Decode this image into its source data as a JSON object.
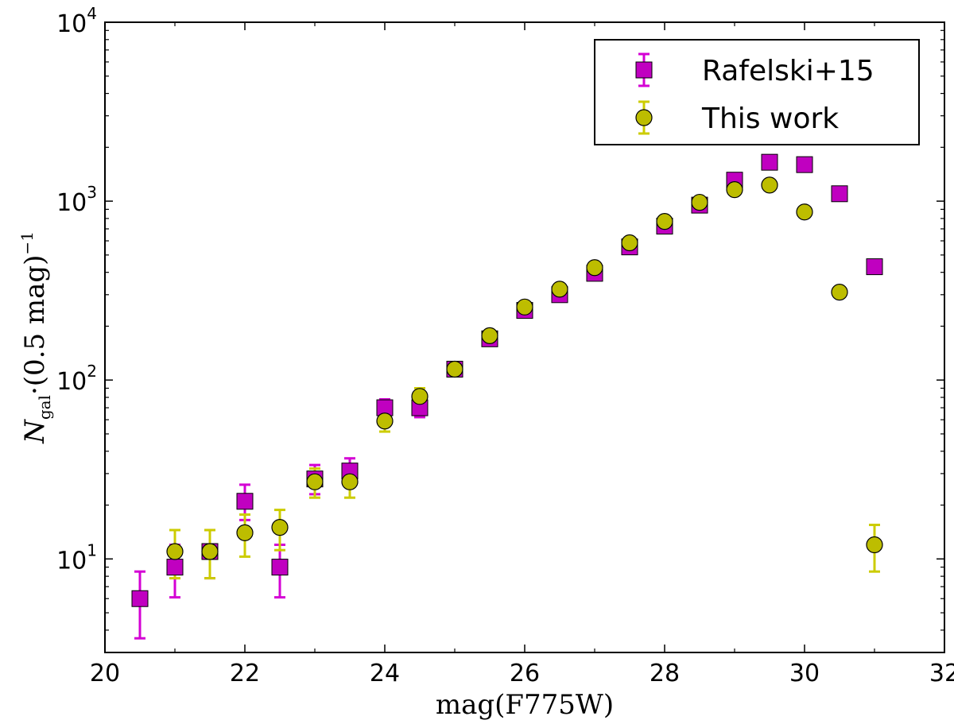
{
  "chart_data": {
    "type": "scatter",
    "xlabel": "mag(F775W)",
    "ylabel_parts": {
      "symbol": "N",
      "subscript": "gal",
      "body": "·(0.5 mag)",
      "exponent": "−1"
    },
    "xlim": [
      20,
      32
    ],
    "ylim": [
      3,
      10000
    ],
    "yscale": "log",
    "x_ticks": [
      "20",
      "22",
      "24",
      "26",
      "28",
      "30",
      "32"
    ],
    "y_ticks": [
      {
        "base": "10",
        "exp": "1",
        "value": 10
      },
      {
        "base": "10",
        "exp": "2",
        "value": 100
      },
      {
        "base": "10",
        "exp": "3",
        "value": 1000
      },
      {
        "base": "10",
        "exp": "4",
        "value": 10000
      }
    ],
    "legend_position": "top-right",
    "series": [
      {
        "name": "Rafelski+15",
        "marker": "square",
        "color": "#c000c0",
        "error_color": "#d400d4",
        "points": [
          {
            "x": 20.5,
            "y": 6,
            "lo": 3.6,
            "hi": 8.5
          },
          {
            "x": 21.0,
            "y": 9,
            "lo": 6.1,
            "hi": 12
          },
          {
            "x": 21.5,
            "y": 11,
            "lo": 7.8,
            "hi": 14.5
          },
          {
            "x": 22.0,
            "y": 21,
            "lo": 16.5,
            "hi": 26
          },
          {
            "x": 22.5,
            "y": 9,
            "lo": 6.1,
            "hi": 12
          },
          {
            "x": 23.0,
            "y": 28,
            "lo": 23,
            "hi": 33.5
          },
          {
            "x": 23.5,
            "y": 31,
            "lo": 25.5,
            "hi": 36.5
          },
          {
            "x": 24.0,
            "y": 70,
            "lo": 62,
            "hi": 78
          },
          {
            "x": 24.5,
            "y": 70,
            "lo": 62,
            "hi": 78
          },
          {
            "x": 25.0,
            "y": 115,
            "lo": 105,
            "hi": 125
          },
          {
            "x": 25.5,
            "y": 170,
            "lo": 157,
            "hi": 183
          },
          {
            "x": 26.0,
            "y": 245,
            "lo": 230,
            "hi": 261
          },
          {
            "x": 26.5,
            "y": 300,
            "lo": 283,
            "hi": 318
          },
          {
            "x": 27.0,
            "y": 395,
            "lo": 375,
            "hi": 415
          },
          {
            "x": 27.5,
            "y": 555,
            "lo": 531,
            "hi": 579
          },
          {
            "x": 28.0,
            "y": 725,
            "lo": 698,
            "hi": 752
          },
          {
            "x": 28.5,
            "y": 950,
            "lo": 919,
            "hi": 981
          },
          {
            "x": 29.0,
            "y": 1310,
            "lo": 1274,
            "hi": 1346
          },
          {
            "x": 29.5,
            "y": 1650,
            "lo": 1609,
            "hi": 1691
          },
          {
            "x": 30.0,
            "y": 1600,
            "lo": 1560,
            "hi": 1640
          },
          {
            "x": 30.5,
            "y": 1100,
            "lo": 1067,
            "hi": 1133
          },
          {
            "x": 31.0,
            "y": 430,
            "lo": 409,
            "hi": 451
          }
        ]
      },
      {
        "name": "This work",
        "marker": "circle",
        "color": "#bdbd00",
        "error_color": "#cccc00",
        "points": [
          {
            "x": 21.0,
            "y": 11,
            "lo": 7.8,
            "hi": 14.5
          },
          {
            "x": 21.5,
            "y": 11,
            "lo": 7.8,
            "hi": 14.5
          },
          {
            "x": 22.0,
            "y": 14,
            "lo": 10.3,
            "hi": 17.7
          },
          {
            "x": 22.5,
            "y": 15,
            "lo": 11.2,
            "hi": 18.8
          },
          {
            "x": 23.0,
            "y": 27,
            "lo": 22,
            "hi": 32
          },
          {
            "x": 23.5,
            "y": 27,
            "lo": 22,
            "hi": 32
          },
          {
            "x": 24.0,
            "y": 59,
            "lo": 51.5,
            "hi": 66.5
          },
          {
            "x": 24.5,
            "y": 81,
            "lo": 72,
            "hi": 90
          },
          {
            "x": 25.0,
            "y": 115,
            "lo": 105,
            "hi": 125
          },
          {
            "x": 25.5,
            "y": 177,
            "lo": 164,
            "hi": 190
          },
          {
            "x": 26.0,
            "y": 256,
            "lo": 240,
            "hi": 272
          },
          {
            "x": 26.5,
            "y": 322,
            "lo": 304,
            "hi": 340
          },
          {
            "x": 27.0,
            "y": 425,
            "lo": 404,
            "hi": 446
          },
          {
            "x": 27.5,
            "y": 585,
            "lo": 561,
            "hi": 609
          },
          {
            "x": 28.0,
            "y": 770,
            "lo": 742,
            "hi": 798
          },
          {
            "x": 28.5,
            "y": 985,
            "lo": 954,
            "hi": 1016
          },
          {
            "x": 29.0,
            "y": 1160,
            "lo": 1126,
            "hi": 1194
          },
          {
            "x": 29.5,
            "y": 1230,
            "lo": 1195,
            "hi": 1265
          },
          {
            "x": 30.0,
            "y": 870,
            "lo": 840,
            "hi": 900
          },
          {
            "x": 30.5,
            "y": 310,
            "lo": 292,
            "hi": 328
          },
          {
            "x": 31.0,
            "y": 12,
            "lo": 8.5,
            "hi": 15.5
          }
        ]
      }
    ]
  }
}
